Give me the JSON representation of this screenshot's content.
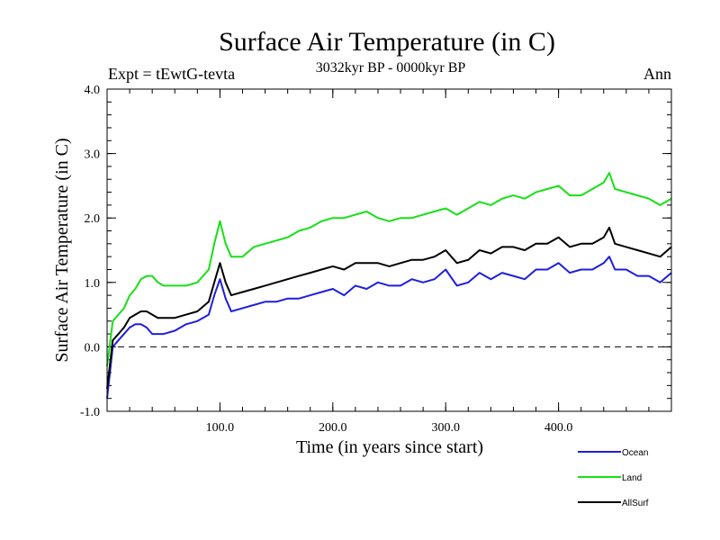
{
  "chart_data": {
    "type": "line",
    "title": "Surface Air Temperature (in C)",
    "subtitle": "3032kyr BP - 0000kyr BP",
    "experiment_label": "Expt = tEwtG-tevta",
    "season_label": "Ann",
    "xlabel": "Time (in years since start)",
    "ylabel": "Surface Air Temperature (in C)",
    "xlim": [
      0,
      500
    ],
    "ylim": [
      -1.0,
      4.0
    ],
    "xticks": [
      100,
      200,
      300,
      400
    ],
    "xtick_labels": [
      "100.0",
      "200.0",
      "300.0",
      "400.0"
    ],
    "yticks": [
      -1.0,
      0.0,
      1.0,
      2.0,
      3.0,
      4.0
    ],
    "ytick_labels": [
      "-1.0",
      "0.0",
      "1.0",
      "2.0",
      "3.0",
      "4.0"
    ],
    "zero_reference_line": 0.0,
    "legend_position": "bottom-right, below plot",
    "series": [
      {
        "name": "Ocean",
        "color": "#1f1fdc",
        "x": [
          0,
          5,
          10,
          15,
          20,
          25,
          30,
          35,
          40,
          45,
          50,
          60,
          70,
          80,
          90,
          95,
          100,
          105,
          110,
          120,
          130,
          140,
          150,
          160,
          170,
          180,
          190,
          200,
          210,
          220,
          230,
          240,
          250,
          260,
          270,
          280,
          290,
          300,
          310,
          320,
          330,
          340,
          350,
          360,
          370,
          380,
          390,
          400,
          410,
          420,
          430,
          440,
          445,
          450,
          460,
          470,
          480,
          490,
          500
        ],
        "values": [
          -0.8,
          0.0,
          0.1,
          0.2,
          0.3,
          0.35,
          0.35,
          0.3,
          0.2,
          0.2,
          0.2,
          0.25,
          0.35,
          0.4,
          0.5,
          0.8,
          1.05,
          0.75,
          0.55,
          0.6,
          0.65,
          0.7,
          0.7,
          0.75,
          0.75,
          0.8,
          0.85,
          0.9,
          0.8,
          0.95,
          0.9,
          1.0,
          0.95,
          0.95,
          1.05,
          1.0,
          1.05,
          1.2,
          0.95,
          1.0,
          1.15,
          1.05,
          1.15,
          1.1,
          1.05,
          1.2,
          1.2,
          1.3,
          1.15,
          1.2,
          1.2,
          1.3,
          1.4,
          1.2,
          1.2,
          1.1,
          1.1,
          1.0,
          1.15
        ]
      },
      {
        "name": "Land",
        "color": "#16e016",
        "x": [
          0,
          5,
          10,
          15,
          20,
          25,
          30,
          35,
          40,
          45,
          50,
          60,
          70,
          80,
          90,
          95,
          100,
          105,
          110,
          120,
          130,
          140,
          150,
          160,
          170,
          180,
          190,
          200,
          210,
          220,
          230,
          240,
          250,
          260,
          270,
          280,
          290,
          300,
          310,
          320,
          330,
          340,
          350,
          360,
          370,
          380,
          390,
          400,
          410,
          420,
          430,
          440,
          445,
          450,
          460,
          470,
          480,
          490,
          500
        ],
        "values": [
          -0.3,
          0.4,
          0.5,
          0.6,
          0.8,
          0.9,
          1.05,
          1.1,
          1.1,
          1.0,
          0.95,
          0.95,
          0.95,
          1.0,
          1.2,
          1.6,
          1.95,
          1.6,
          1.4,
          1.4,
          1.55,
          1.6,
          1.65,
          1.7,
          1.8,
          1.85,
          1.95,
          2.0,
          2.0,
          2.05,
          2.1,
          2.0,
          1.95,
          2.0,
          2.0,
          2.05,
          2.1,
          2.15,
          2.05,
          2.15,
          2.25,
          2.2,
          2.3,
          2.35,
          2.3,
          2.4,
          2.45,
          2.5,
          2.35,
          2.35,
          2.45,
          2.55,
          2.7,
          2.45,
          2.4,
          2.35,
          2.3,
          2.2,
          2.3
        ]
      },
      {
        "name": "AllSurf",
        "color": "#000000",
        "x": [
          0,
          5,
          10,
          15,
          20,
          25,
          30,
          35,
          40,
          45,
          50,
          60,
          70,
          80,
          90,
          95,
          100,
          105,
          110,
          120,
          130,
          140,
          150,
          160,
          170,
          180,
          190,
          200,
          210,
          220,
          230,
          240,
          250,
          260,
          270,
          280,
          290,
          300,
          310,
          320,
          330,
          340,
          350,
          360,
          370,
          380,
          390,
          400,
          410,
          420,
          430,
          440,
          445,
          450,
          460,
          470,
          480,
          490,
          500
        ],
        "values": [
          -0.65,
          0.1,
          0.2,
          0.3,
          0.45,
          0.5,
          0.55,
          0.55,
          0.5,
          0.45,
          0.45,
          0.45,
          0.5,
          0.55,
          0.7,
          1.0,
          1.3,
          1.0,
          0.8,
          0.85,
          0.9,
          0.95,
          1.0,
          1.05,
          1.1,
          1.15,
          1.2,
          1.25,
          1.2,
          1.3,
          1.3,
          1.3,
          1.25,
          1.3,
          1.35,
          1.35,
          1.4,
          1.5,
          1.3,
          1.35,
          1.5,
          1.45,
          1.55,
          1.55,
          1.5,
          1.6,
          1.6,
          1.7,
          1.55,
          1.6,
          1.6,
          1.7,
          1.85,
          1.6,
          1.55,
          1.5,
          1.45,
          1.4,
          1.55
        ]
      }
    ]
  }
}
